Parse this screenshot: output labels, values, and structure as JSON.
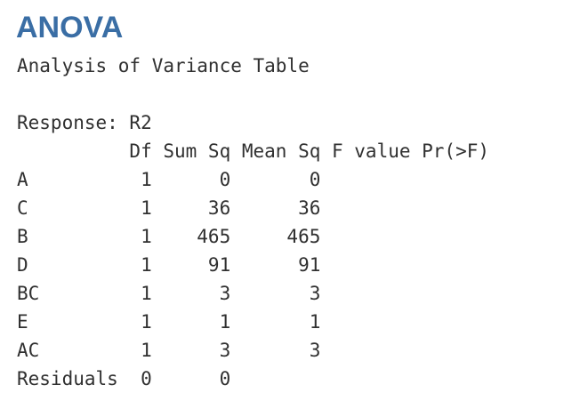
{
  "heading": "ANOVA",
  "lines": [
    "Analysis of Variance Table",
    "",
    "Response: R2",
    "          Df Sum Sq Mean Sq F value Pr(>F)",
    "A          1      0       0",
    "C          1     36      36",
    "B          1    465     465",
    "D          1     91      91",
    "BC         1      3       3",
    "E          1      1       1",
    "AC         1      3       3",
    "Residuals  0      0"
  ],
  "colors": {
    "heading": "#3a6ea5",
    "text": "#303030",
    "background": "#ffffff"
  }
}
